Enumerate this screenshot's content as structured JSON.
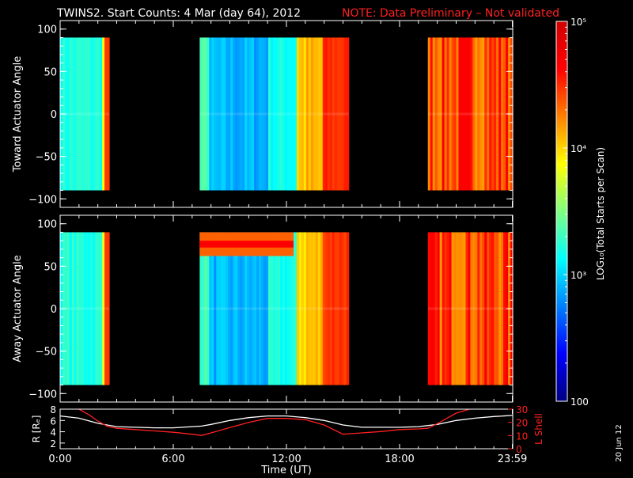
{
  "title": {
    "main": "TWINS2. Start Counts:  4 Mar (day  64), 2012",
    "note": "NOTE: Data Preliminary – Not validated",
    "note_color": "#ff2020"
  },
  "side_date": "20 Jun 12",
  "chart_data": [
    {
      "type": "heatmap",
      "name": "toward",
      "ylabel": "Toward Actuator Angle",
      "ylim": [
        -110,
        110
      ],
      "yticks": [
        "100",
        "50",
        "0",
        "−50",
        "−100"
      ],
      "ytick_values": [
        100,
        50,
        0,
        -50,
        -100
      ],
      "angle_range": [
        -90,
        90
      ],
      "segments": [
        {
          "t_start": 0.0,
          "t_end": 2.6,
          "level": "cyan-to-orange"
        },
        {
          "t_start": 7.4,
          "t_end": 15.3,
          "level": "blue-cyan-to-orange"
        },
        {
          "t_start": 19.5,
          "t_end": 24.0,
          "level": "orange-red"
        }
      ]
    },
    {
      "type": "heatmap",
      "name": "away",
      "ylabel": "Away Actuator Angle",
      "ylim": [
        -110,
        110
      ],
      "yticks": [
        "100",
        "50",
        "0",
        "−50",
        "−100"
      ],
      "ytick_values": [
        100,
        50,
        0,
        -50,
        -100
      ],
      "angle_range": [
        -90,
        90
      ],
      "segments": [
        {
          "t_start": 0.0,
          "t_end": 2.6,
          "level": "cyan-to-orange"
        },
        {
          "t_start": 7.4,
          "t_end": 15.3,
          "level": "blue-cyan-to-orange"
        },
        {
          "t_start": 19.5,
          "t_end": 24.0,
          "level": "orange-red"
        }
      ]
    },
    {
      "type": "line",
      "name": "orbit",
      "xlabel": "Time (UT)",
      "xticks": [
        "0:00",
        "6:00",
        "12:00",
        "18:00",
        "23:59"
      ],
      "xtick_values": [
        0,
        6,
        12,
        18,
        23.98
      ],
      "xlim": [
        0,
        24
      ],
      "left_axis": {
        "label": "R [Rₑ]",
        "ylim": [
          1,
          8
        ],
        "ticks": [
          "8",
          "6",
          "4",
          "2"
        ],
        "tick_values": [
          8,
          6,
          4,
          2
        ],
        "color": "#ffffff"
      },
      "right_axis": {
        "label": "L Shell",
        "ylim": [
          0,
          30
        ],
        "ticks": [
          "30",
          "20",
          "10",
          "0"
        ],
        "tick_values": [
          30,
          20,
          10,
          0
        ],
        "color": "#ff2020"
      },
      "series": [
        {
          "axis": "left",
          "color": "#ffffff",
          "x": [
            0,
            1,
            2,
            3,
            4,
            5,
            6,
            7,
            7.5,
            8,
            9,
            10,
            11,
            12,
            13,
            14,
            15,
            16,
            17,
            18,
            19,
            20,
            21,
            22,
            23,
            24
          ],
          "y": [
            6.8,
            6.4,
            5.5,
            4.9,
            4.8,
            4.7,
            4.7,
            4.9,
            5.0,
            5.3,
            6.0,
            6.5,
            6.8,
            6.8,
            6.5,
            6.0,
            5.2,
            4.8,
            4.8,
            4.8,
            4.9,
            5.3,
            6.0,
            6.4,
            6.7,
            6.9
          ]
        },
        {
          "axis": "right",
          "color": "#ff2020",
          "x": [
            1,
            1.5,
            2,
            2.5,
            3,
            4,
            5,
            6,
            7,
            7.5,
            8,
            9,
            10,
            11,
            12,
            13,
            14,
            15,
            16,
            17,
            18,
            19,
            19.5,
            20,
            20.5,
            21,
            21.7
          ],
          "y": [
            30,
            26,
            21,
            17,
            15.5,
            14.5,
            13.5,
            12.5,
            11,
            10,
            12,
            16,
            20,
            23,
            23,
            22,
            18,
            11,
            12,
            13,
            14.5,
            15,
            15.5,
            19,
            23,
            27,
            30
          ]
        }
      ]
    }
  ],
  "colorbar": {
    "label": "LOG₁₀(Total Starts per Scan)",
    "ticks": [
      "10⁵",
      "10⁴",
      "10³",
      "100"
    ],
    "tick_values": [
      100000,
      10000,
      1000,
      100
    ],
    "range": [
      100,
      100000
    ],
    "colors": [
      "#000080",
      "#0000ff",
      "#0080ff",
      "#00ffff",
      "#80ff80",
      "#ffff00",
      "#ff8000",
      "#ff0000",
      "#d00000"
    ]
  }
}
